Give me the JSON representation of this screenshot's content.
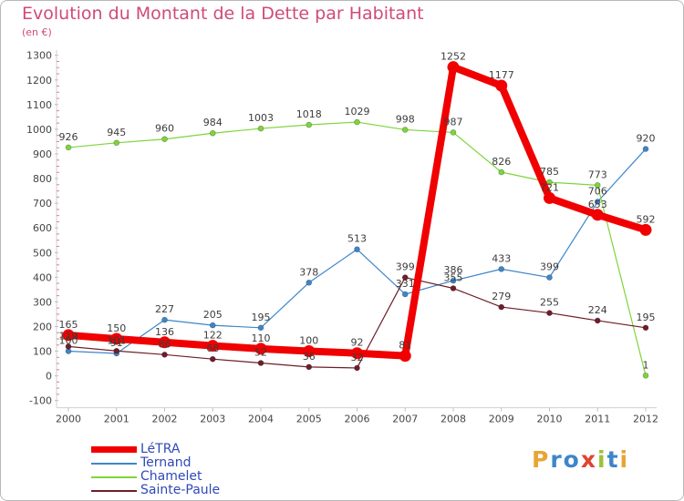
{
  "header": {
    "title": "Evolution du Montant de la Dette par Habitant",
    "subtitle": "(en €)"
  },
  "logo": {
    "text": "Proxiti",
    "colors": [
      "#e8a534",
      "#3e86c8",
      "#3e86c8",
      "#e04430",
      "#9cc236",
      "#3e86c8",
      "#e8a534"
    ]
  },
  "chart_data": {
    "type": "line",
    "title": "Evolution du Montant de la Dette par Habitant",
    "subtitle": "(en €)",
    "x": [
      "2000",
      "2001",
      "2002",
      "2003",
      "2004",
      "2005",
      "2006",
      "2007",
      "2008",
      "2009",
      "2010",
      "2011",
      "2012"
    ],
    "ylim": [
      -100,
      1300
    ],
    "yticks": [
      -100,
      0,
      100,
      200,
      300,
      400,
      500,
      600,
      700,
      800,
      900,
      1000,
      1100,
      1200,
      1300
    ],
    "grid": false,
    "legend_position": "bottom-left",
    "series": [
      {
        "name": "LéTRA",
        "color": "#f00000",
        "values": [
          165,
          150,
          136,
          122,
          110,
          100,
          92,
          81,
          1252,
          1177,
          721,
          653,
          592
        ]
      },
      {
        "name": "Ternand",
        "color": "#3e86c8",
        "values": [
          100,
          91,
          227,
          205,
          195,
          378,
          513,
          331,
          386,
          433,
          399,
          706,
          920
        ]
      },
      {
        "name": "Chamelet",
        "color": "#7fd43c",
        "values": [
          926,
          945,
          960,
          984,
          1003,
          1018,
          1029,
          998,
          987,
          826,
          785,
          773,
          1
        ]
      },
      {
        "name": "Sainte-Paule",
        "color": "#6e1e28",
        "values": [
          119,
          101,
          86,
          68,
          52,
          36,
          32,
          399,
          355,
          279,
          255,
          224,
          195
        ]
      }
    ]
  }
}
